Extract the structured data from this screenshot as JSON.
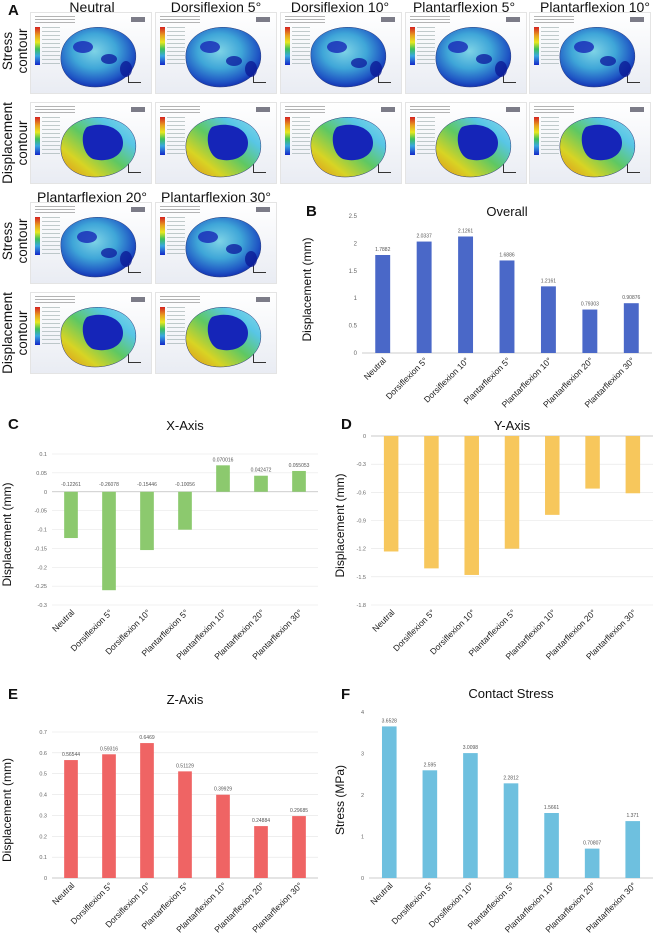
{
  "panels": {
    "A": "A",
    "B": "B",
    "C": "C",
    "D": "D",
    "E": "E",
    "F": "F"
  },
  "figure_a": {
    "column_headers_top": [
      "Neutral",
      "Dorsiflexion 5°",
      "Dorsiflexion 10°",
      "Plantarflexion 5°",
      "Plantarflexion 10°"
    ],
    "column_headers_bottom": [
      "Plantarflexion 20°",
      "Plantarflexion 30°"
    ],
    "row_labels": {
      "stress_line1": "Stress",
      "stress_line2": "contour",
      "disp_line1": "Displacement",
      "disp_line2": "contour"
    }
  },
  "colors": {
    "overall": "#4a68c8",
    "x_axis": "#8cc96e",
    "y_axis": "#f7c75c",
    "z_axis": "#ef6464",
    "contact": "#6ec0df"
  },
  "chart_data": [
    {
      "id": "overall",
      "type": "bar",
      "title": "Overall",
      "ylabel": "Displacement (mm)",
      "xlabel": "",
      "categories": [
        "Neutral",
        "Dorsiflexion 5°",
        "Dorsiflexion 10°",
        "Plantarflexion 5°",
        "Plantarflexion 10°",
        "Plantarflexion 20°",
        "Plantarflexion 30°"
      ],
      "values": [
        1.7882,
        2.0337,
        2.1261,
        1.6886,
        1.2161,
        0.79303,
        0.90876
      ],
      "value_labels": [
        "1.7882",
        "2.0337",
        "2.1261",
        "1.6886",
        "1.2161",
        "0.79303",
        "0.90876"
      ],
      "ylim": [
        0,
        2.5
      ],
      "ticks": [
        0,
        0.5,
        1,
        1.5,
        2,
        2.5
      ],
      "tick_labels": [
        "0",
        "0.5",
        "1",
        "1.5",
        "2",
        "2.5"
      ],
      "grid": false
    },
    {
      "id": "x_axis",
      "type": "bar",
      "title": "X-Axis",
      "ylabel": "Displacement (mm)",
      "xlabel": "",
      "categories": [
        "Neutral",
        "Dorsiflexion 5°",
        "Dorsiflexion 10°",
        "Plantarflexion 5°",
        "Plantarflexion 10°",
        "Plantarflexion 20°",
        "Plantarflexion 30°"
      ],
      "values": [
        -0.12261,
        -0.26078,
        -0.15446,
        -0.10056,
        0.070016,
        0.042472,
        0.055053
      ],
      "value_labels": [
        "-0.12261",
        "-0.26078",
        "-0.15446",
        "-0.10056",
        "0.070016",
        "0.042472",
        "0.055053"
      ],
      "ylim": [
        -0.3,
        0.1
      ],
      "ticks": [
        -0.3,
        -0.25,
        -0.2,
        -0.15,
        -0.1,
        -0.05,
        0,
        0.05,
        0.1
      ],
      "tick_labels": [
        "-0.3",
        "-0.25",
        "-0.2",
        "-0.15",
        "-0.1",
        "-0.05",
        "0",
        "0.05",
        "0.1"
      ],
      "grid": true
    },
    {
      "id": "y_axis",
      "type": "bar",
      "title": "Y-Axis",
      "ylabel": "Displacement (mm)",
      "xlabel": "",
      "categories": [
        "Neutral",
        "Dorsiflexion 5°",
        "Dorsiflexion 10°",
        "Plantarflexion 5°",
        "Plantarflexion 10°",
        "Plantarflexion 20°",
        "Plantarflexion 30°"
      ],
      "values": [
        -1.23,
        -1.41,
        -1.48,
        -1.2,
        -0.84,
        -0.56,
        -0.61
      ],
      "ylim": [
        -1.8,
        0
      ],
      "ticks": [
        -1.8,
        -1.5,
        -1.2,
        -0.9,
        -0.6,
        -0.3,
        0
      ],
      "tick_labels": [
        "-1.8",
        "-1.5",
        "-1.2",
        "-0.9",
        "-0.6",
        "-0.3",
        "0"
      ],
      "grid": true
    },
    {
      "id": "z_axis",
      "type": "bar",
      "title": "Z-Axis",
      "ylabel": "Displacement (mm)",
      "xlabel": "",
      "categories": [
        "Neutral",
        "Dorsiflexion 5°",
        "Dorsiflexion 10°",
        "Plantarflexion 5°",
        "Plantarflexion 10°",
        "Plantarflexion 20°",
        "Plantarflexion 30°"
      ],
      "values": [
        0.56544,
        0.59316,
        0.6469,
        0.51129,
        0.39929,
        0.24884,
        0.29685
      ],
      "value_labels": [
        "0.56544",
        "0.59316",
        "0.6469",
        "0.51129",
        "0.39929",
        "0.24884",
        "0.29685"
      ],
      "ylim": [
        0,
        0.7
      ],
      "ticks": [
        0,
        0.1,
        0.2,
        0.3,
        0.4,
        0.5,
        0.6,
        0.7
      ],
      "tick_labels": [
        "0",
        "0.1",
        "0.2",
        "0.3",
        "0.4",
        "0.5",
        "0.6",
        "0.7"
      ],
      "grid": true
    },
    {
      "id": "contact",
      "type": "bar",
      "title": "Contact Stress",
      "ylabel": "Stress (MPa)",
      "xlabel": "",
      "categories": [
        "Neutral",
        "Dorsiflexion 5°",
        "Dorsiflexion 10°",
        "Plantarflexion 5°",
        "Plantarflexion 10°",
        "Plantarflexion 20°",
        "Plantarflexion 30°"
      ],
      "values": [
        3.6528,
        2.595,
        3.0098,
        2.2812,
        1.5661,
        0.70807,
        1.371
      ],
      "value_labels": [
        "3.6528",
        "2.595",
        "3.0098",
        "2.2812",
        "1.5661",
        "0.70807",
        "1.371"
      ],
      "ylim": [
        0,
        4
      ],
      "ticks": [
        0,
        1,
        2,
        3,
        4
      ],
      "tick_labels": [
        "0",
        "1",
        "2",
        "3",
        "4"
      ],
      "grid": false
    }
  ]
}
